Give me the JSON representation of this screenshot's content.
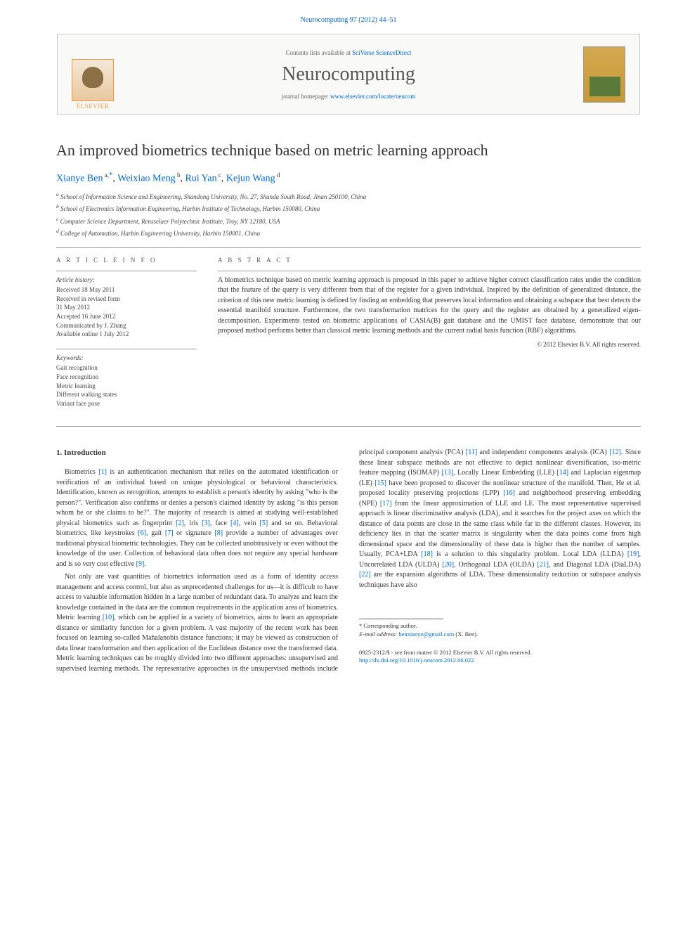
{
  "header": {
    "journal_ref_pre": "Neurocomputing 97 (2012) 44–51",
    "journal_ref_link": "Neurocomputing 97 (2012) 44–51"
  },
  "banner": {
    "contents_pre": "Contents lists available at ",
    "contents_link": "SciVerse ScienceDirect",
    "journal_name": "Neurocomputing",
    "homepage_pre": "journal homepage: ",
    "homepage_link": "www.elsevier.com/locate/neucom",
    "publisher_label": "ELSEVIER"
  },
  "article": {
    "title": "An improved biometrics technique based on metric learning approach",
    "authors_html": [
      {
        "name": "Xianye Ben",
        "sup": "a,",
        "marker": "*"
      },
      {
        "name": "Weixiao Meng",
        "sup": "b"
      },
      {
        "name": "Rui Yan",
        "sup": "c"
      },
      {
        "name": "Kejun Wang",
        "sup": "d"
      }
    ],
    "affiliations": [
      "a School of Information Science and Engineering, Shandong University, No. 27, Shanda South Road, Jinan 250100, China",
      "b School of Electronics Information Engineering, Harbin Institute of Technology, Harbin 150080, China",
      "c Computer Science Department, Rensselaer Polytechnic Institute, Troy, NY 12180, USA",
      "d College of Automation, Harbin Engineering University, Harbin 150001, China"
    ]
  },
  "info": {
    "article_info_label": "A R T I C L E   I N F O",
    "history_label": "Article history:",
    "history_lines": [
      "Received 18 May 2011",
      "Received in revised form",
      "31 May 2012",
      "Accepted 16 June 2012",
      "Communicated by J. Zhang",
      "Available online 1 July 2012"
    ],
    "keywords_label": "Keywords:",
    "keywords": [
      "Gait recognition",
      "Face recognition",
      "Metric learning",
      "Different walking states",
      "Variant face pose"
    ]
  },
  "abstract": {
    "label": "A B S T R A C T",
    "text": "A biometrics technique based on metric learning approach is proposed in this paper to achieve higher correct classification rates under the condition that the feature of the query is very different from that of the register for a given individual. Inspired by the definition of generalized distance, the criterion of this new metric learning is defined by finding an embedding that preserves local information and obtaining a subspace that best detects the essential manifold structure. Furthermore, the two transformation matrices for the query and the register are obtained by a generalized eigen-decomposition. Experiments tested on biometric applications of CASIA(B) gait database and the UMIST face database, demonstrate that our proposed method performs better than classical metric learning methods and the current radial basis function (RBF) algorithms.",
    "copyright": "© 2012 Elsevier B.V. All rights reserved."
  },
  "body": {
    "heading": "1.  Introduction",
    "para1_pre": "Biometrics ",
    "ref1": "[1]",
    "para1_post": " is an authentication mechanism that relies on the automated identification or verification of an individual based on unique physiological or behavioral characteristics. Identification, known as recognition, attempts to establish a person's identity by asking \"who is the person?\". Verification also confirms or denies a person's claimed identity by asking \"is this person whom he or she claims to be?\". The majority of research is aimed at studying well-established physical biometrics such as fingerprint ",
    "ref2": "[2]",
    "para1_c2": ", iris ",
    "ref3": "[3]",
    "para1_c3": ", face ",
    "ref4": "[4]",
    "para1_c4": ", vein ",
    "ref5": "[5]",
    "para1_c5": " and so on. Behavioral biometrics, like keystrokes ",
    "ref6": "[6]",
    "para1_c6": ", gait ",
    "ref7": "[7]",
    "para1_c7": " or signature ",
    "ref8": "[8]",
    "para1_c8": " provide a number of advantages over traditional physical biometric technologies. They can be collected unobtrusively or even without the knowledge of the user. Collection of behavioral data often does not require any special hardware and is so very cost effective ",
    "ref9": "[9]",
    "para1_end": ".",
    "para2_pre": "Not only are vast quantities of biometrics information used as a form of identity access management and access control, but also as unprecedented challenges for us—it is difficult to have access to valuable information hidden in a large number of redundant data. To analyze and learn the knowledge contained in the data are the common requirements in the application area of biometrics. Metric learning ",
    "ref10": "[10]",
    "para2_c1": ", which can be applied in a variety of biometrics, aims to learn an appropriate distance or similarity function for a given problem. A vast majority of the recent work has been focused on learning so-called Mahalanobis distance functions; it may be viewed as construction of data linear transformation and then application of the Euclidean distance over the transformed data. Metric learning techniques can be roughly divided into two different approaches: unsupervised and supervised learning methods. The representative approaches in the unsupervised methods include principal component analysis (PCA) ",
    "ref11": "[11]",
    "para2_c2": " and independent components analysis (ICA) ",
    "ref12": "[12]",
    "para2_c3": ". Since these linear subspace methods are not effective to depict nonlinear diversification, iso-metric feature mapping (ISOMAP) ",
    "ref13": "[13]",
    "para2_c4": ", Locally Linear Embedding (LLE) ",
    "ref14": "[14]",
    "para2_c5": " and Laplacian eigenmap (LE) ",
    "ref15": "[15]",
    "para2_c6": " have been proposed to discover the nonlinear structure of the manifold. Then, He et al. proposed locality preserving projections (LPP) ",
    "ref16": "[16]",
    "para2_c7": " and neighborhood preserving embedding (NPE) ",
    "ref17": "[17]",
    "para2_c8": " from the linear approximation of LLE and LE. The most representative supervised approach is linear discriminative analysis (LDA), and it searches for the project axes on which the distance of data points are close in the same class while far in the different classes. However, its deficiency lies in that the scatter matrix is singularity when the data points come from high dimensional space and the dimensionality of these data is higher than the number of samples. Usually, PCA+LDA ",
    "ref18": "[18]",
    "para2_c9": " is a solution to this singularity problem. Local LDA (LLDA) ",
    "ref19": "[19]",
    "para2_c10": ", Uncorrelated LDA (ULDA) ",
    "ref20": "[20]",
    "para2_c11": ", Orthogonal LDA (OLDA) ",
    "ref21": "[21]",
    "para2_c12": ", and Diagonal LDA (DiaLDA) ",
    "ref22": "[22]",
    "para2_c13": " are the expansion algorithms of LDA. These dimensionality reduction or subspace analysis techniques have also"
  },
  "footnote": {
    "corr_label": "* Corresponding author.",
    "email_label": "E-mail address: ",
    "email": "benxianye@gmail.com",
    "email_tail": " (X. Ben)."
  },
  "footer": {
    "line1": "0925-2312/$ - see front matter © 2012 Elsevier B.V. All rights reserved.",
    "doi_label": "http://dx.doi.org/",
    "doi": "10.1016/j.neucom.2012.06.022"
  }
}
